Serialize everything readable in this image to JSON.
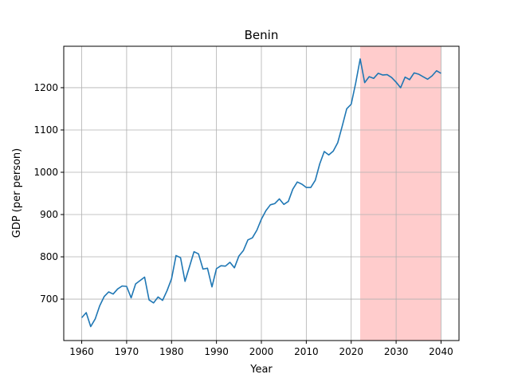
{
  "chart_data": {
    "type": "line",
    "title": "Benin",
    "xlabel": "Year",
    "ylabel": "GDP (per person)",
    "xlim": [
      1956.0,
      2044.0
    ],
    "ylim": [
      602,
      1298
    ],
    "x_ticks": [
      1960,
      1970,
      1980,
      1990,
      2000,
      2010,
      2020,
      2030,
      2040
    ],
    "y_ticks": [
      700,
      800,
      900,
      1000,
      1100,
      1200
    ],
    "grid": true,
    "line_color": "#1f77b4",
    "shaded_region": {
      "x_start": 2022,
      "x_end": 2040,
      "color": "#ffcccc"
    },
    "series": [
      {
        "x": [
          1960,
          1961,
          1962,
          1963,
          1964,
          1965,
          1966,
          1967,
          1968,
          1969,
          1970,
          1971,
          1972,
          1973,
          1974,
          1975,
          1976,
          1977,
          1978,
          1979,
          1980,
          1981,
          1982,
          1983,
          1984,
          1985,
          1986,
          1987,
          1988,
          1989,
          1990,
          1991,
          1992,
          1993,
          1994,
          1995,
          1996,
          1997,
          1998,
          1999,
          2000,
          2001,
          2002,
          2003,
          2004,
          2005,
          2006,
          2007,
          2008,
          2009,
          2010,
          2011,
          2012,
          2013,
          2014,
          2015,
          2016,
          2017,
          2018,
          2019,
          2020,
          2021,
          2022,
          2023,
          2024,
          2025,
          2026,
          2027,
          2028,
          2029,
          2030,
          2031,
          2032,
          2033,
          2034,
          2035,
          2036,
          2037,
          2038,
          2039,
          2040
        ],
        "values": [
          656,
          668,
          635,
          653,
          684,
          706,
          717,
          712,
          724,
          731,
          730,
          703,
          736,
          744,
          752,
          698,
          691,
          705,
          697,
          720,
          748,
          803,
          798,
          742,
          777,
          812,
          807,
          771,
          773,
          729,
          772,
          779,
          778,
          787,
          774,
          802,
          815,
          840,
          845,
          863,
          889,
          909,
          923,
          926,
          937,
          924,
          931,
          960,
          977,
          972,
          964,
          964,
          981,
          1020,
          1049,
          1041,
          1050,
          1070,
          1109,
          1150,
          1161,
          1211,
          1268,
          1212,
          1226,
          1222,
          1234,
          1230,
          1231,
          1224,
          1213,
          1200,
          1225,
          1219,
          1235,
          1232,
          1226,
          1220,
          1228,
          1240,
          1234
        ]
      }
    ]
  }
}
